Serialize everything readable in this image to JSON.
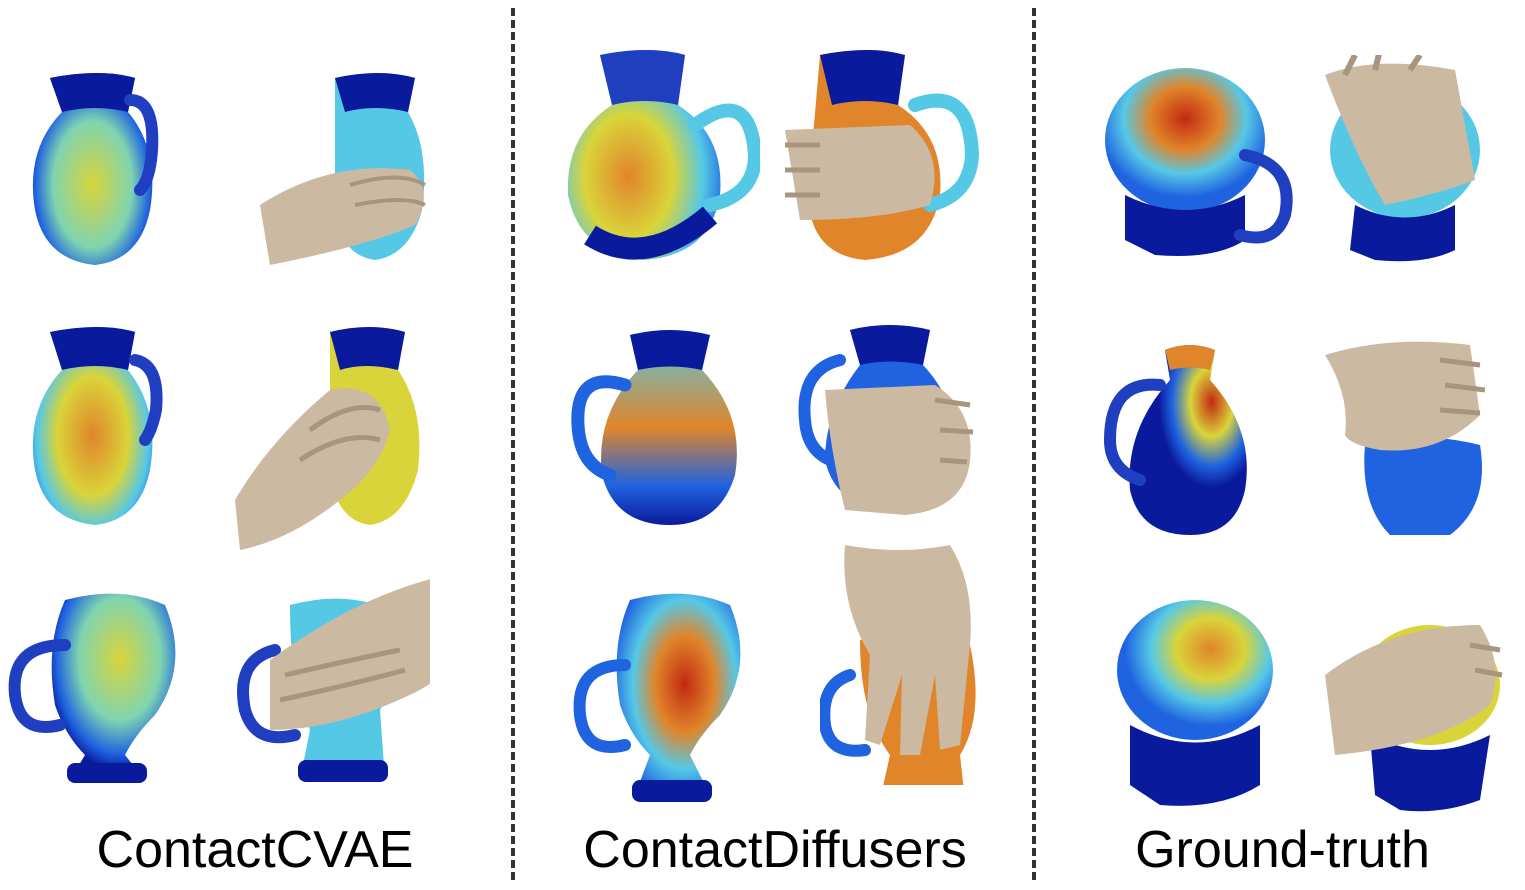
{
  "columns": [
    {
      "label": "ContactCVAE"
    },
    {
      "label": "ContactDiffusers"
    },
    {
      "label": "Ground-truth"
    }
  ],
  "colors": {
    "cold": "#0a1a9c",
    "cool": "#1f63e0",
    "mid": "#55c8e6",
    "warm": "#d9d43a",
    "hot": "#e0852a",
    "peak": "#c22a12",
    "hand": "#cbb9a2",
    "hand_shadow": "#a8957e",
    "divider": "#333333"
  }
}
